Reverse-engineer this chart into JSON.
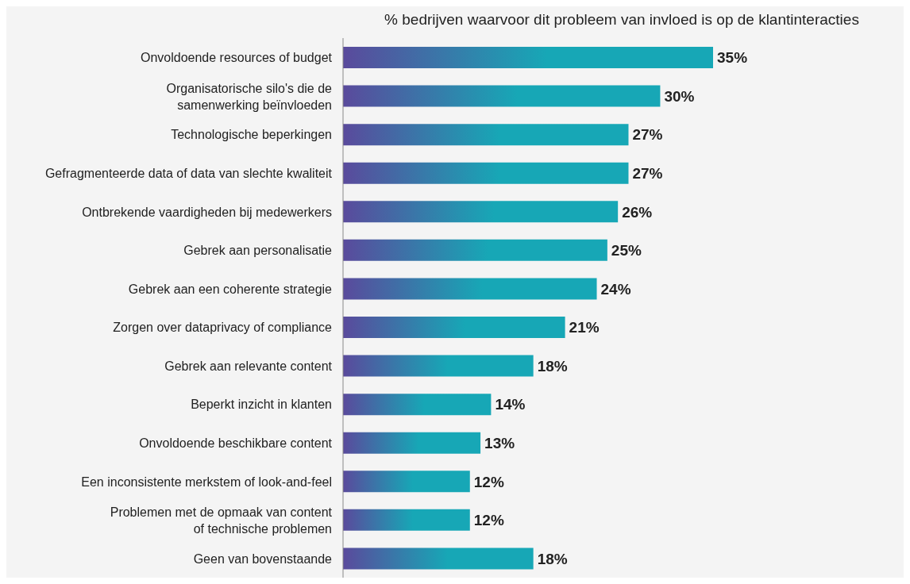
{
  "chart_data": {
    "type": "bar",
    "orientation": "horizontal",
    "title": "% bedrijven waarvoor dit probleem van invloed is op de klantinteracties",
    "categories": [
      "Onvoldoende resources of budget",
      "Organisatorische silo's die de samenwerking beïnvloeden",
      "Technologische beperkingen",
      "Gefragmenteerde data of data van slechte kwaliteit",
      "Ontbrekende vaardigheden bij medewerkers",
      "Gebrek aan personalisatie",
      "Gebrek aan een coherente strategie",
      "Zorgen over dataprivacy of compliance",
      "Gebrek aan relevante content",
      "Beperkt inzicht in klanten",
      "Onvoldoende beschikbare content",
      "Een inconsistente merkstem of look-and-feel",
      "Problemen met de opmaak van content of technische problemen",
      "Geen van bovenstaande"
    ],
    "values": [
      35,
      30,
      27,
      27,
      26,
      25,
      24,
      21,
      18,
      14,
      13,
      12,
      12,
      18
    ],
    "value_labels": [
      "35%",
      "30%",
      "27%",
      "27%",
      "26%",
      "25%",
      "24%",
      "21%",
      "18%",
      "14%",
      "13%",
      "12%",
      "12%",
      "18%"
    ],
    "color": "#17a7b6",
    "tick_labels": "y"
  }
}
